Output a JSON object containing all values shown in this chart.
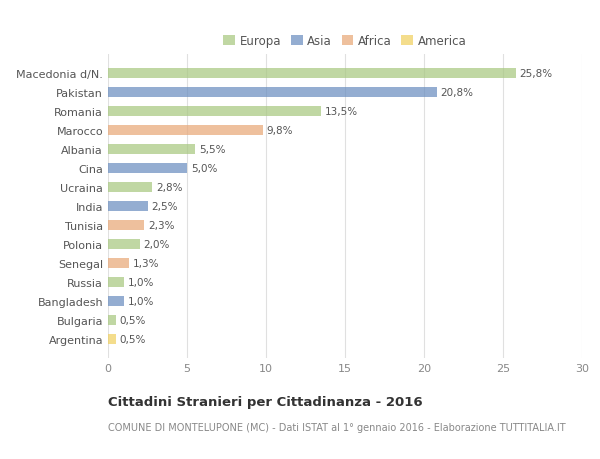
{
  "countries": [
    "Macedonia d/N.",
    "Pakistan",
    "Romania",
    "Marocco",
    "Albania",
    "Cina",
    "Ucraina",
    "India",
    "Tunisia",
    "Polonia",
    "Senegal",
    "Russia",
    "Bangladesh",
    "Bulgaria",
    "Argentina"
  ],
  "values": [
    25.8,
    20.8,
    13.5,
    9.8,
    5.5,
    5.0,
    2.8,
    2.5,
    2.3,
    2.0,
    1.3,
    1.0,
    1.0,
    0.5,
    0.5
  ],
  "labels": [
    "25,8%",
    "20,8%",
    "13,5%",
    "9,8%",
    "5,5%",
    "5,0%",
    "2,8%",
    "2,5%",
    "2,3%",
    "2,0%",
    "1,3%",
    "1,0%",
    "1,0%",
    "0,5%",
    "0,5%"
  ],
  "continents": [
    "Europa",
    "Asia",
    "Europa",
    "Africa",
    "Europa",
    "Asia",
    "Europa",
    "Asia",
    "Africa",
    "Europa",
    "Africa",
    "Europa",
    "Asia",
    "Europa",
    "America"
  ],
  "colors": {
    "Europa": "#a8c880",
    "Asia": "#6b8ec0",
    "Africa": "#e8a878",
    "America": "#f0d060"
  },
  "xlim": [
    0,
    30
  ],
  "xticks": [
    0,
    5,
    10,
    15,
    20,
    25,
    30
  ],
  "title": "Cittadini Stranieri per Cittadinanza - 2016",
  "subtitle": "COMUNE DI MONTELUPONE (MC) - Dati ISTAT al 1° gennaio 2016 - Elaborazione TUTTITALIA.IT",
  "background_color": "#ffffff",
  "grid_color": "#e0e0e0",
  "bar_alpha": 0.72,
  "bar_height": 0.55,
  "label_fontsize": 7.5,
  "ytick_fontsize": 8.0,
  "xtick_fontsize": 8.0,
  "legend_fontsize": 8.5,
  "title_fontsize": 9.5,
  "subtitle_fontsize": 7.0,
  "legend_order": [
    "Europa",
    "Asia",
    "Africa",
    "America"
  ]
}
